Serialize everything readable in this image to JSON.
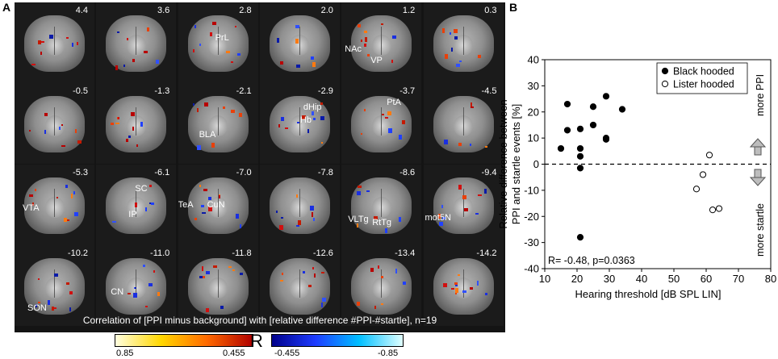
{
  "panel_a": {
    "letter": "A",
    "rows": [
      [
        {
          "coord": "4.4",
          "regions": []
        },
        {
          "coord": "3.6",
          "regions": []
        },
        {
          "coord": "2.8",
          "regions": [
            {
              "name": "PrL",
              "lx": 46,
              "ly": 38
            }
          ]
        },
        {
          "coord": "2.0",
          "regions": []
        },
        {
          "coord": "1.2",
          "regions": [
            {
              "name": "NAc",
              "lx": 4,
              "ly": 52
            },
            {
              "name": "VP",
              "lx": 36,
              "ly": 66
            }
          ]
        },
        {
          "coord": "0.3",
          "regions": []
        }
      ],
      [
        {
          "coord": "-0.5",
          "regions": []
        },
        {
          "coord": "-1.3",
          "regions": []
        },
        {
          "coord": "-2.1",
          "regions": [
            {
              "name": "BLA",
              "lx": 26,
              "ly": 58
            }
          ]
        },
        {
          "coord": "-2.9",
          "regions": [
            {
              "name": "dHip",
              "lx": 54,
              "ly": 24
            },
            {
              "name": "Hb",
              "lx": 50,
              "ly": 40
            }
          ]
        },
        {
          "coord": "-3.7",
          "regions": [
            {
              "name": "PtA",
              "lx": 56,
              "ly": 18
            }
          ]
        },
        {
          "coord": "-4.5",
          "regions": []
        }
      ],
      [
        {
          "coord": "-5.3",
          "regions": [
            {
              "name": "VTA",
              "lx": 10,
              "ly": 48
            }
          ]
        },
        {
          "coord": "-6.1",
          "regions": [
            {
              "name": "SC",
              "lx": 48,
              "ly": 24
            },
            {
              "name": "IP",
              "lx": 40,
              "ly": 56
            }
          ]
        },
        {
          "coord": "-7.0",
          "regions": [
            {
              "name": "TeA",
              "lx": 0,
              "ly": 44
            },
            {
              "name": "CuN",
              "lx": 36,
              "ly": 44
            }
          ]
        },
        {
          "coord": "-7.8",
          "regions": []
        },
        {
          "coord": "-8.6",
          "regions": [
            {
              "name": "VLTg",
              "lx": 8,
              "ly": 62
            },
            {
              "name": "RtTg",
              "lx": 38,
              "ly": 66
            }
          ]
        },
        {
          "coord": "-9.4",
          "regions": [
            {
              "name": "mot5N",
              "lx": 2,
              "ly": 60
            }
          ]
        }
      ],
      [
        {
          "coord": "-10.2",
          "regions": [
            {
              "name": "SON",
              "lx": 16,
              "ly": 72
            }
          ]
        },
        {
          "coord": "-11.0",
          "regions": [
            {
              "name": "CN",
              "lx": 18,
              "ly": 52
            }
          ]
        },
        {
          "coord": "-11.8",
          "regions": []
        },
        {
          "coord": "-12.6",
          "regions": []
        },
        {
          "coord": "-13.4",
          "regions": []
        },
        {
          "coord": "-14.2",
          "regions": []
        }
      ]
    ],
    "caption": "Correlation of [PPI minus background] with [relative difference #PPI-#startle], n=19",
    "colorbar": {
      "symbol": "R",
      "pos_low": "0.85",
      "pos_high": "0.455",
      "neg_low": "-0.455",
      "neg_high": "-0.85",
      "pos_colors": [
        "#ffffe0",
        "#ffd700",
        "#ff6a00",
        "#b00000"
      ],
      "neg_colors": [
        "#00008b",
        "#1e3cff",
        "#00bfff",
        "#e0ffff"
      ]
    }
  },
  "panel_b": {
    "letter": "B",
    "annotation_up": "more PPI",
    "annotation_down": "more startle",
    "stats": "R= -0.48, p=0.0363"
  },
  "chart_data": {
    "type": "scatter",
    "xlabel": "Hearing threshold [dB SPL LIN]",
    "ylabel_lines": [
      "Relative difference between",
      "PPI and startle events [%]"
    ],
    "xlim": [
      10,
      80
    ],
    "ylim": [
      -40,
      40
    ],
    "xticks": [
      10,
      20,
      30,
      40,
      50,
      60,
      70,
      80
    ],
    "yticks": [
      -40,
      -30,
      -20,
      -10,
      0,
      10,
      20,
      30,
      40
    ],
    "reference_line_y": 0,
    "legend_position": "top-right",
    "series": [
      {
        "name": "Black hooded",
        "marker": "filled",
        "color": "#000000",
        "points": [
          [
            15,
            6
          ],
          [
            17,
            23
          ],
          [
            17,
            13
          ],
          [
            21,
            13.5
          ],
          [
            21,
            6
          ],
          [
            21,
            3
          ],
          [
            21,
            -1.5
          ],
          [
            21,
            -28
          ],
          [
            25,
            22
          ],
          [
            25,
            15
          ],
          [
            29,
            26
          ],
          [
            29,
            10
          ],
          [
            29,
            9.5
          ],
          [
            34,
            21
          ]
        ]
      },
      {
        "name": "Lister hooded",
        "marker": "open",
        "color": "#000000",
        "points": [
          [
            57,
            -9.5
          ],
          [
            59,
            -4
          ],
          [
            61,
            3.5
          ],
          [
            62,
            -17.5
          ],
          [
            64,
            -17
          ]
        ]
      }
    ]
  }
}
